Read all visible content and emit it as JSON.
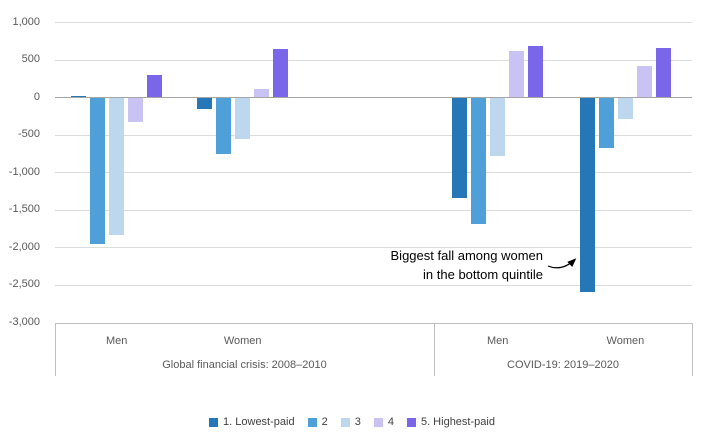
{
  "chart_data": {
    "type": "bar",
    "title": "",
    "y_axis": {
      "min": -3000,
      "max": 1000,
      "step": 500,
      "tick_labels": [
        "1,000",
        "500",
        "0",
        "-500",
        "-1,000",
        "-1,500",
        "-2,000",
        "-2,500",
        "-3,000"
      ],
      "grid": true
    },
    "group_axis": {
      "sections": [
        {
          "label": "Global financial crisis: 2008–2010",
          "categories": [
            "Men",
            "Women"
          ]
        },
        {
          "label": "COVID-19: 2019–2020",
          "categories": [
            "Men",
            "Women"
          ]
        }
      ]
    },
    "series": [
      {
        "name": "1. Lowest-paid",
        "color": "#2577B8",
        "values": [
          20,
          -140,
          -1330,
          -2580
        ]
      },
      {
        "name": "2",
        "color": "#4F9FD9",
        "values": [
          -1950,
          -750,
          -1680,
          -670
        ]
      },
      {
        "name": "3",
        "color": "#BCD7EE",
        "values": [
          -1820,
          -540,
          -770,
          -280
        ]
      },
      {
        "name": "4",
        "color": "#C9C3F3",
        "values": [
          -320,
          110,
          610,
          420
        ]
      },
      {
        "name": "5. Highest-paid",
        "color": "#7A66E8",
        "values": [
          300,
          640,
          680,
          660
        ]
      }
    ],
    "legend_position": "bottom",
    "annotation": {
      "line1": "Biggest fall among women",
      "line2": "in the bottom quintile",
      "target": "COVID-19 Women, 1. Lowest-paid bar"
    }
  },
  "colors": {
    "grid_line": "#DCDCDC",
    "zero_line": "#A6A6A6",
    "axis_border": "#BFBFBF",
    "axis_text": "#595959",
    "legend_text": "#404040",
    "annotation_text": "#000000",
    "background": "#FFFFFF"
  }
}
